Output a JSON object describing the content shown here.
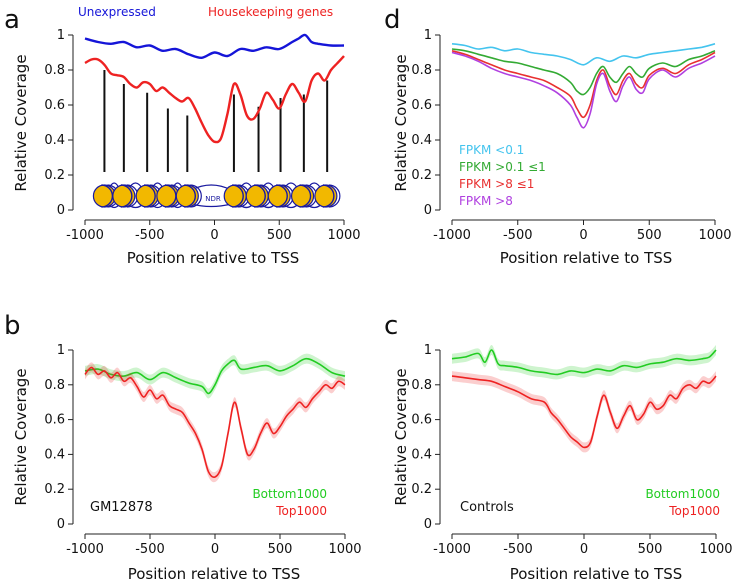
{
  "colors": {
    "blue": "#1515d8",
    "red": "#ee2222",
    "green": "#22cc22",
    "cyan": "#44c4ee",
    "fpkm_green": "#33aa33",
    "fpkm_red": "#e83030",
    "purple": "#b040e0",
    "nucleosome": "#f2b800",
    "nuc_outline": "#1a1aa0"
  },
  "chart_data": [
    {
      "id": "a",
      "panel_letter": "a",
      "type": "line",
      "xlabel": "Position relative to TSS",
      "ylabel": "Relative Coverage",
      "xlim": [
        -1000,
        1000
      ],
      "ylim": [
        0,
        1
      ],
      "xticks": [
        -1000,
        -500,
        0,
        500,
        1000
      ],
      "xtick_labels": [
        "-1000",
        "-500",
        "0",
        "500",
        "1000"
      ],
      "yticks": [
        0,
        0.2,
        0.4,
        0.6,
        0.8,
        1
      ],
      "ytick_labels": [
        "0",
        "0.2",
        "0.4",
        "0.6",
        "0.8",
        "1"
      ],
      "legend_entries": [
        {
          "label": "Unexpressed",
          "color": "#1515d8",
          "placement": "top-left"
        },
        {
          "label": "Housekeeping genes",
          "color": "#ee2222",
          "placement": "top-right"
        }
      ],
      "nucleosome_diagram": {
        "nucleosome_positions": [
          -850,
          -700,
          -520,
          -360,
          -210,
          160,
          330,
          500,
          680,
          860
        ],
        "marker_lines": [
          {
            "x": -850,
            "y_top": 0.8
          },
          {
            "x": -700,
            "y_top": 0.72
          },
          {
            "x": -520,
            "y_top": 0.67
          },
          {
            "x": -360,
            "y_top": 0.58
          },
          {
            "x": -210,
            "y_top": 0.54
          },
          {
            "x": 150,
            "y_top": 0.66
          },
          {
            "x": 340,
            "y_top": 0.59
          },
          {
            "x": 510,
            "y_top": 0.64
          },
          {
            "x": 690,
            "y_top": 0.66
          },
          {
            "x": 870,
            "y_top": 0.74
          }
        ],
        "ndr_label": "NDR"
      },
      "series": [
        {
          "name": "Unexpressed",
          "color": "#1515d8",
          "x": [
            -1000,
            -900,
            -800,
            -700,
            -600,
            -500,
            -400,
            -300,
            -200,
            -100,
            0,
            100,
            200,
            300,
            400,
            500,
            600,
            650,
            700,
            750,
            800,
            900,
            1000
          ],
          "y": [
            0.98,
            0.96,
            0.95,
            0.96,
            0.93,
            0.94,
            0.91,
            0.92,
            0.89,
            0.87,
            0.9,
            0.88,
            0.92,
            0.91,
            0.93,
            0.92,
            0.96,
            0.98,
            1.0,
            0.96,
            0.95,
            0.94,
            0.94
          ]
        },
        {
          "name": "Housekeeping genes",
          "color": "#ee2222",
          "x": [
            -1000,
            -950,
            -900,
            -850,
            -800,
            -750,
            -700,
            -650,
            -600,
            -550,
            -500,
            -450,
            -400,
            -350,
            -300,
            -250,
            -200,
            -150,
            -100,
            -50,
            0,
            50,
            100,
            150,
            200,
            250,
            300,
            350,
            400,
            450,
            500,
            550,
            600,
            650,
            700,
            750,
            800,
            850,
            900,
            950,
            1000
          ],
          "y": [
            0.84,
            0.86,
            0.86,
            0.83,
            0.78,
            0.77,
            0.76,
            0.72,
            0.7,
            0.73,
            0.72,
            0.68,
            0.7,
            0.67,
            0.64,
            0.62,
            0.64,
            0.58,
            0.5,
            0.43,
            0.39,
            0.41,
            0.55,
            0.72,
            0.66,
            0.54,
            0.52,
            0.58,
            0.67,
            0.63,
            0.58,
            0.66,
            0.72,
            0.67,
            0.62,
            0.74,
            0.78,
            0.74,
            0.8,
            0.84,
            0.88
          ]
        }
      ]
    },
    {
      "id": "d",
      "panel_letter": "d",
      "type": "line",
      "xlabel": "Position relative to TSS",
      "ylabel": "Relative Coverage",
      "xlim": [
        -1000,
        1000
      ],
      "ylim": [
        0,
        1
      ],
      "xticks": [
        -1000,
        -500,
        0,
        500,
        1000
      ],
      "xtick_labels": [
        "-1000",
        "-500",
        "0",
        "500",
        "1000"
      ],
      "yticks": [
        0,
        0.2,
        0.4,
        0.6,
        0.8,
        1
      ],
      "ytick_labels": [
        "0",
        "0.2",
        "0.4",
        "0.6",
        "0.8",
        "1"
      ],
      "legend_entries": [
        {
          "label": "FPKM <0.1",
          "color": "#44c4ee"
        },
        {
          "label": "FPKM >0.1 ≤1",
          "color": "#33aa33"
        },
        {
          "label": "FPKM >8 ≤1",
          "color": "#e83030"
        },
        {
          "label": "FPKM >8",
          "color": "#b040e0"
        }
      ],
      "series": [
        {
          "name": "FPKM <0.1",
          "color": "#44c4ee",
          "x": [
            -1000,
            -900,
            -800,
            -700,
            -600,
            -500,
            -400,
            -300,
            -200,
            -100,
            0,
            100,
            200,
            300,
            400,
            500,
            600,
            700,
            800,
            900,
            1000
          ],
          "y": [
            0.95,
            0.94,
            0.92,
            0.93,
            0.91,
            0.92,
            0.9,
            0.89,
            0.88,
            0.86,
            0.83,
            0.87,
            0.85,
            0.88,
            0.87,
            0.89,
            0.9,
            0.91,
            0.92,
            0.93,
            0.95
          ]
        },
        {
          "name": "FPKM >0.1 ≤1",
          "color": "#33aa33",
          "x": [
            -1000,
            -900,
            -800,
            -700,
            -600,
            -500,
            -400,
            -300,
            -200,
            -100,
            -50,
            0,
            50,
            100,
            150,
            200,
            250,
            300,
            350,
            400,
            450,
            500,
            600,
            700,
            800,
            900,
            1000
          ],
          "y": [
            0.92,
            0.91,
            0.89,
            0.87,
            0.85,
            0.84,
            0.82,
            0.8,
            0.78,
            0.73,
            0.68,
            0.66,
            0.7,
            0.78,
            0.82,
            0.76,
            0.73,
            0.78,
            0.82,
            0.78,
            0.76,
            0.81,
            0.84,
            0.82,
            0.86,
            0.88,
            0.91
          ]
        },
        {
          "name": "FPKM >8 ≤1",
          "color": "#e83030",
          "x": [
            -1000,
            -900,
            -800,
            -700,
            -600,
            -500,
            -400,
            -300,
            -200,
            -100,
            -50,
            0,
            50,
            100,
            150,
            200,
            250,
            300,
            350,
            400,
            450,
            500,
            600,
            700,
            800,
            900,
            1000
          ],
          "y": [
            0.91,
            0.89,
            0.86,
            0.83,
            0.8,
            0.78,
            0.76,
            0.74,
            0.7,
            0.65,
            0.58,
            0.53,
            0.6,
            0.74,
            0.8,
            0.71,
            0.66,
            0.74,
            0.78,
            0.72,
            0.7,
            0.77,
            0.81,
            0.78,
            0.83,
            0.86,
            0.9
          ]
        },
        {
          "name": "FPKM >8",
          "color": "#b040e0",
          "x": [
            -1000,
            -900,
            -800,
            -700,
            -600,
            -500,
            -400,
            -300,
            -200,
            -100,
            -50,
            0,
            50,
            100,
            150,
            200,
            250,
            300,
            350,
            400,
            450,
            500,
            600,
            700,
            800,
            900,
            1000
          ],
          "y": [
            0.9,
            0.88,
            0.85,
            0.81,
            0.78,
            0.76,
            0.74,
            0.71,
            0.67,
            0.6,
            0.53,
            0.47,
            0.55,
            0.72,
            0.78,
            0.68,
            0.62,
            0.71,
            0.76,
            0.69,
            0.67,
            0.75,
            0.8,
            0.76,
            0.81,
            0.84,
            0.88
          ]
        }
      ]
    },
    {
      "id": "b",
      "panel_letter": "b",
      "type": "line",
      "xlabel": "Position relative to TSS",
      "ylabel": "Relative Coverage",
      "sample_label": "GM12878",
      "xlim": [
        -1000,
        1000
      ],
      "ylim": [
        0,
        1
      ],
      "xticks": [
        -1000,
        -500,
        0,
        500,
        1000
      ],
      "xtick_labels": [
        "-1000",
        "-500",
        "0",
        "500",
        "1000"
      ],
      "yticks": [
        0,
        0.2,
        0.4,
        0.6,
        0.8,
        1
      ],
      "ytick_labels": [
        "0",
        "0.2",
        "0.4",
        "0.6",
        "0.8",
        "1"
      ],
      "legend_entries": [
        {
          "label": "Bottom1000",
          "color": "#22cc22"
        },
        {
          "label": "Top1000",
          "color": "#ee2222"
        }
      ],
      "series": [
        {
          "name": "Bottom1000",
          "color": "#22cc22",
          "x": [
            -1000,
            -900,
            -800,
            -700,
            -600,
            -500,
            -400,
            -300,
            -200,
            -100,
            -50,
            0,
            50,
            100,
            150,
            200,
            300,
            400,
            500,
            600,
            700,
            800,
            900,
            1000
          ],
          "y": [
            0.88,
            0.89,
            0.86,
            0.85,
            0.87,
            0.83,
            0.87,
            0.84,
            0.81,
            0.79,
            0.75,
            0.8,
            0.88,
            0.92,
            0.94,
            0.89,
            0.9,
            0.91,
            0.88,
            0.91,
            0.95,
            0.92,
            0.87,
            0.85
          ]
        },
        {
          "name": "Top1000",
          "color": "#ee2222",
          "x": [
            -1000,
            -950,
            -900,
            -850,
            -800,
            -750,
            -700,
            -650,
            -600,
            -550,
            -500,
            -450,
            -400,
            -350,
            -300,
            -250,
            -200,
            -150,
            -100,
            -50,
            0,
            50,
            100,
            150,
            200,
            250,
            300,
            350,
            400,
            450,
            500,
            550,
            600,
            650,
            700,
            750,
            800,
            850,
            900,
            950,
            1000
          ],
          "y": [
            0.86,
            0.9,
            0.86,
            0.88,
            0.84,
            0.87,
            0.82,
            0.84,
            0.79,
            0.73,
            0.77,
            0.72,
            0.74,
            0.68,
            0.66,
            0.64,
            0.58,
            0.52,
            0.43,
            0.3,
            0.27,
            0.33,
            0.52,
            0.7,
            0.55,
            0.4,
            0.43,
            0.52,
            0.58,
            0.52,
            0.56,
            0.62,
            0.66,
            0.7,
            0.67,
            0.72,
            0.76,
            0.8,
            0.78,
            0.82,
            0.8
          ]
        }
      ]
    },
    {
      "id": "c",
      "panel_letter": "c",
      "type": "line",
      "xlabel": "Position relative to TSS",
      "ylabel": "Relative Coverage",
      "sample_label": "Controls",
      "xlim": [
        -1000,
        1000
      ],
      "ylim": [
        0,
        1
      ],
      "xticks": [
        -1000,
        -500,
        0,
        500,
        1000
      ],
      "xtick_labels": [
        "-1000",
        "-500",
        "0",
        "500",
        "1000"
      ],
      "yticks": [
        0,
        0.2,
        0.4,
        0.6,
        0.8,
        1
      ],
      "ytick_labels": [
        "0",
        "0.2",
        "0.4",
        "0.6",
        "0.8",
        "1"
      ],
      "legend_entries": [
        {
          "label": "Bottom1000",
          "color": "#22cc22"
        },
        {
          "label": "Top1000",
          "color": "#ee2222"
        }
      ],
      "series": [
        {
          "name": "Bottom1000",
          "color": "#22cc22",
          "x": [
            -1000,
            -900,
            -800,
            -750,
            -700,
            -650,
            -600,
            -500,
            -400,
            -300,
            -200,
            -100,
            0,
            100,
            200,
            300,
            400,
            500,
            600,
            700,
            800,
            900,
            950,
            1000
          ],
          "y": [
            0.95,
            0.96,
            0.98,
            0.93,
            1.0,
            0.92,
            0.91,
            0.9,
            0.88,
            0.87,
            0.86,
            0.88,
            0.87,
            0.89,
            0.88,
            0.91,
            0.9,
            0.92,
            0.93,
            0.95,
            0.94,
            0.95,
            0.96,
            1.0
          ]
        },
        {
          "name": "Top1000",
          "color": "#ee2222",
          "x": [
            -1000,
            -900,
            -800,
            -700,
            -600,
            -500,
            -400,
            -300,
            -250,
            -200,
            -150,
            -100,
            -50,
            0,
            50,
            100,
            150,
            200,
            250,
            300,
            350,
            400,
            450,
            500,
            550,
            600,
            650,
            700,
            750,
            800,
            850,
            900,
            950,
            1000
          ],
          "y": [
            0.85,
            0.84,
            0.83,
            0.82,
            0.79,
            0.76,
            0.72,
            0.7,
            0.64,
            0.6,
            0.55,
            0.5,
            0.47,
            0.44,
            0.47,
            0.62,
            0.74,
            0.64,
            0.55,
            0.62,
            0.68,
            0.6,
            0.63,
            0.7,
            0.66,
            0.68,
            0.74,
            0.72,
            0.78,
            0.8,
            0.78,
            0.82,
            0.81,
            0.85
          ]
        }
      ]
    }
  ]
}
